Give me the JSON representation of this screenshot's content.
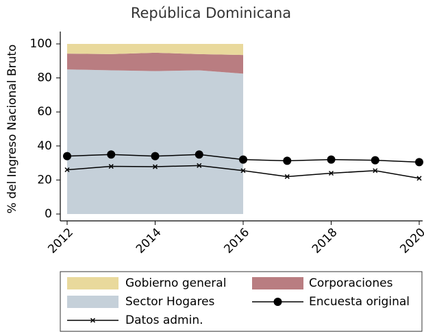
{
  "chart_data": {
    "type": "line",
    "title": "República Dominicana",
    "y_label": "% del Ingreso Nacional Bruto",
    "x": [
      2012,
      2013,
      2014,
      2015,
      2016,
      2017,
      2018,
      2019,
      2020
    ],
    "xlim": [
      2012,
      2020
    ],
    "xticks": [
      2012,
      2014,
      2016,
      2018,
      2020
    ],
    "ylim": [
      0,
      100
    ],
    "yticks": [
      0,
      20,
      40,
      60,
      80,
      100
    ],
    "series": [
      {
        "name": "Gobierno general",
        "kind": "area",
        "color": "#e9d99c",
        "values": [
          5.7,
          6,
          5.2,
          6,
          6.5,
          null,
          null,
          null,
          null
        ]
      },
      {
        "name": "Corporaciones",
        "kind": "area",
        "color": "#b97d81",
        "values": [
          9.3,
          9.5,
          10.8,
          9.5,
          11,
          null,
          null,
          null,
          null
        ]
      },
      {
        "name": "Sector Hogares",
        "kind": "area",
        "color": "#c5d0d9",
        "values": [
          85,
          84.5,
          84,
          84.5,
          82.5,
          null,
          null,
          null,
          null
        ]
      },
      {
        "name": "Encuesta original",
        "kind": "line",
        "marker": "circle",
        "color": "#000000",
        "values": [
          34,
          35,
          34,
          35,
          32,
          31.3,
          32,
          31.6,
          30.5
        ]
      },
      {
        "name": "Datos admin.",
        "kind": "line",
        "marker": "x",
        "color": "#000000",
        "values": [
          26,
          28,
          27.8,
          28.5,
          25.5,
          22,
          24,
          25.5,
          21
        ]
      }
    ]
  }
}
